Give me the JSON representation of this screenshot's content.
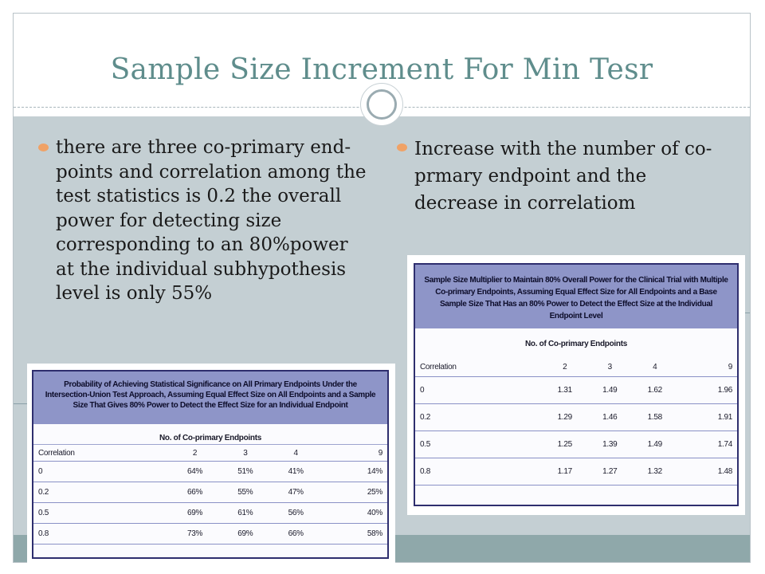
{
  "slide": {
    "title": "Sample Size Increment For Min Tesr"
  },
  "left_bullet": {
    "text": "there are three co-primary end-points and  correlation among the test statistics is 0.2 the overall power for detecting size corresponding to an 80%power at the individual subhypothesis level is only 55%"
  },
  "right_bullet": {
    "text": "Increase with the number of co-prmary endpoint and the decrease in correlatiom"
  },
  "left_table": {
    "caption": "Probability of Achieving Statistical Significance on All Primary Endpoints Under the Intersection-Union Test Approach, Assuming Equal Effect Size on All Endpoints and a Sample Size That Gives 80% Power to Detect the Effect Size for an Individual Endpoint",
    "group_header": "No. of Co-primary Endpoints",
    "columns": [
      "Correlation",
      "2",
      "3",
      "4",
      "9"
    ],
    "rows": [
      [
        "0",
        "64%",
        "51%",
        "41%",
        "14%"
      ],
      [
        "0.2",
        "66%",
        "55%",
        "47%",
        "25%"
      ],
      [
        "0.5",
        "69%",
        "61%",
        "56%",
        "40%"
      ],
      [
        "0.8",
        "73%",
        "69%",
        "66%",
        "58%"
      ]
    ]
  },
  "right_table": {
    "caption": "Sample Size Multiplier to Maintain 80% Overall Power for the Clinical Trial with Multiple Co-primary Endpoints, Assuming Equal Effect Size for All Endpoints and a Base Sample Size That Has an 80% Power to Detect the Effect Size at the Individual Endpoint Level",
    "group_header": "No. of Co-primary Endpoints",
    "columns": [
      "Correlation",
      "2",
      "3",
      "4",
      "9"
    ],
    "rows": [
      [
        "0",
        "1.31",
        "1.49",
        "1.62",
        "1.96"
      ],
      [
        "0.2",
        "1.29",
        "1.46",
        "1.58",
        "1.91"
      ],
      [
        "0.5",
        "1.25",
        "1.39",
        "1.49",
        "1.74"
      ],
      [
        "0.8",
        "1.17",
        "1.27",
        "1.32",
        "1.48"
      ]
    ]
  },
  "colors": {
    "title": "#5f8d8c",
    "body_background": "#c4cfd3",
    "footer_band": "#8fa8aa",
    "bullet": "#f0a266",
    "table_header": "#8e95c8",
    "table_border": "#2e2e6e"
  },
  "icons": {
    "title_badge": "ring-icon",
    "bullet": "bullet-dot-icon"
  }
}
